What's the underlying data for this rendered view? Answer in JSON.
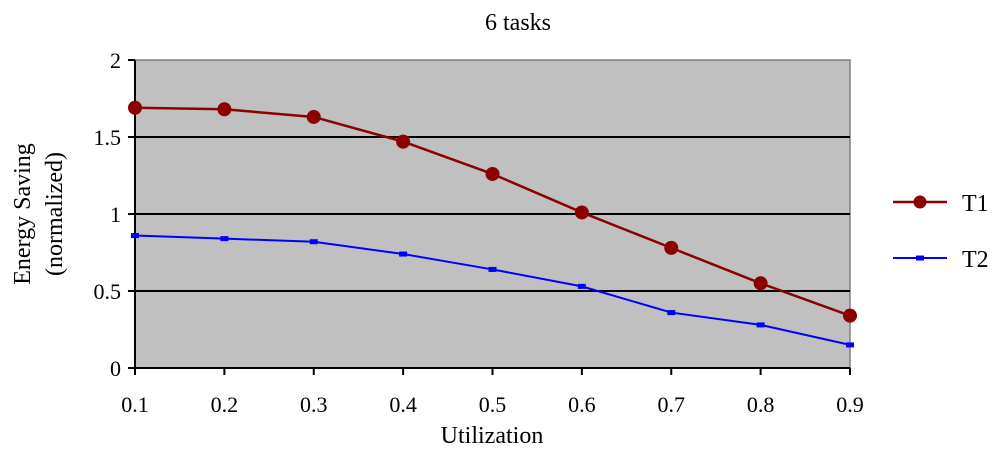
{
  "chart_data": {
    "type": "line",
    "title": "6 tasks",
    "xlabel": "Utilization",
    "ylabel_line1": "Energy Saving",
    "ylabel_line2": "(normalized)",
    "x": [
      0.1,
      0.2,
      0.3,
      0.4,
      0.5,
      0.6,
      0.7,
      0.8,
      0.9
    ],
    "x_tick_labels": [
      "0.1",
      "0.2",
      "0.3",
      "0.4",
      "0.5",
      "0.6",
      "0.7",
      "0.8",
      "0.9"
    ],
    "xlim": [
      0.1,
      0.9
    ],
    "ylim": [
      0,
      2
    ],
    "y_ticks": [
      0,
      0.5,
      1,
      1.5,
      2
    ],
    "y_tick_labels": [
      "0",
      "0.5",
      "1",
      "1.5",
      "2"
    ],
    "grid": "horizontal",
    "legend_position": "right",
    "plot_background": "#c0c0c0",
    "series": [
      {
        "name": "T1",
        "color": "#8b0000",
        "marker": "circle",
        "values": [
          1.69,
          1.68,
          1.63,
          1.47,
          1.26,
          1.01,
          0.78,
          0.55,
          0.34
        ]
      },
      {
        "name": "T2",
        "color": "#0000ff",
        "marker": "dash",
        "values": [
          0.86,
          0.84,
          0.82,
          0.74,
          0.64,
          0.53,
          0.36,
          0.28,
          0.15
        ]
      }
    ]
  }
}
